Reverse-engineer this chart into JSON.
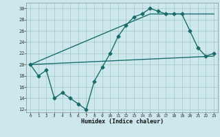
{
  "xlabel": "Humidex (Indice chaleur)",
  "bg_color": "#cce8ec",
  "grid_color": "#aacccc",
  "line_color": "#1a6b6b",
  "xlim": [
    -0.5,
    23.5
  ],
  "ylim": [
    11.5,
    31
  ],
  "xticks": [
    0,
    1,
    2,
    3,
    4,
    5,
    6,
    7,
    8,
    9,
    10,
    11,
    12,
    13,
    14,
    15,
    16,
    17,
    18,
    19,
    20,
    21,
    22,
    23
  ],
  "yticks": [
    12,
    14,
    16,
    18,
    20,
    22,
    24,
    26,
    28,
    30
  ],
  "line1_x": [
    0,
    1,
    2,
    3,
    4,
    5,
    6,
    7,
    8,
    9,
    10,
    11,
    12,
    13,
    14,
    15,
    16,
    17,
    18,
    19,
    20,
    21,
    22,
    23
  ],
  "line1_y": [
    20,
    18,
    19,
    14,
    15,
    14,
    13,
    12,
    17,
    19.5,
    22,
    25,
    27,
    28.5,
    29,
    30,
    29.5,
    29,
    29,
    29,
    26,
    23,
    21.5,
    22
  ],
  "line2_x": [
    0,
    23
  ],
  "line2_y": [
    20,
    21.5
  ],
  "line3_x": [
    0,
    15,
    23
  ],
  "line3_y": [
    20,
    29,
    29
  ],
  "marker": "D",
  "markersize": 2.5,
  "linewidth": 1.0
}
